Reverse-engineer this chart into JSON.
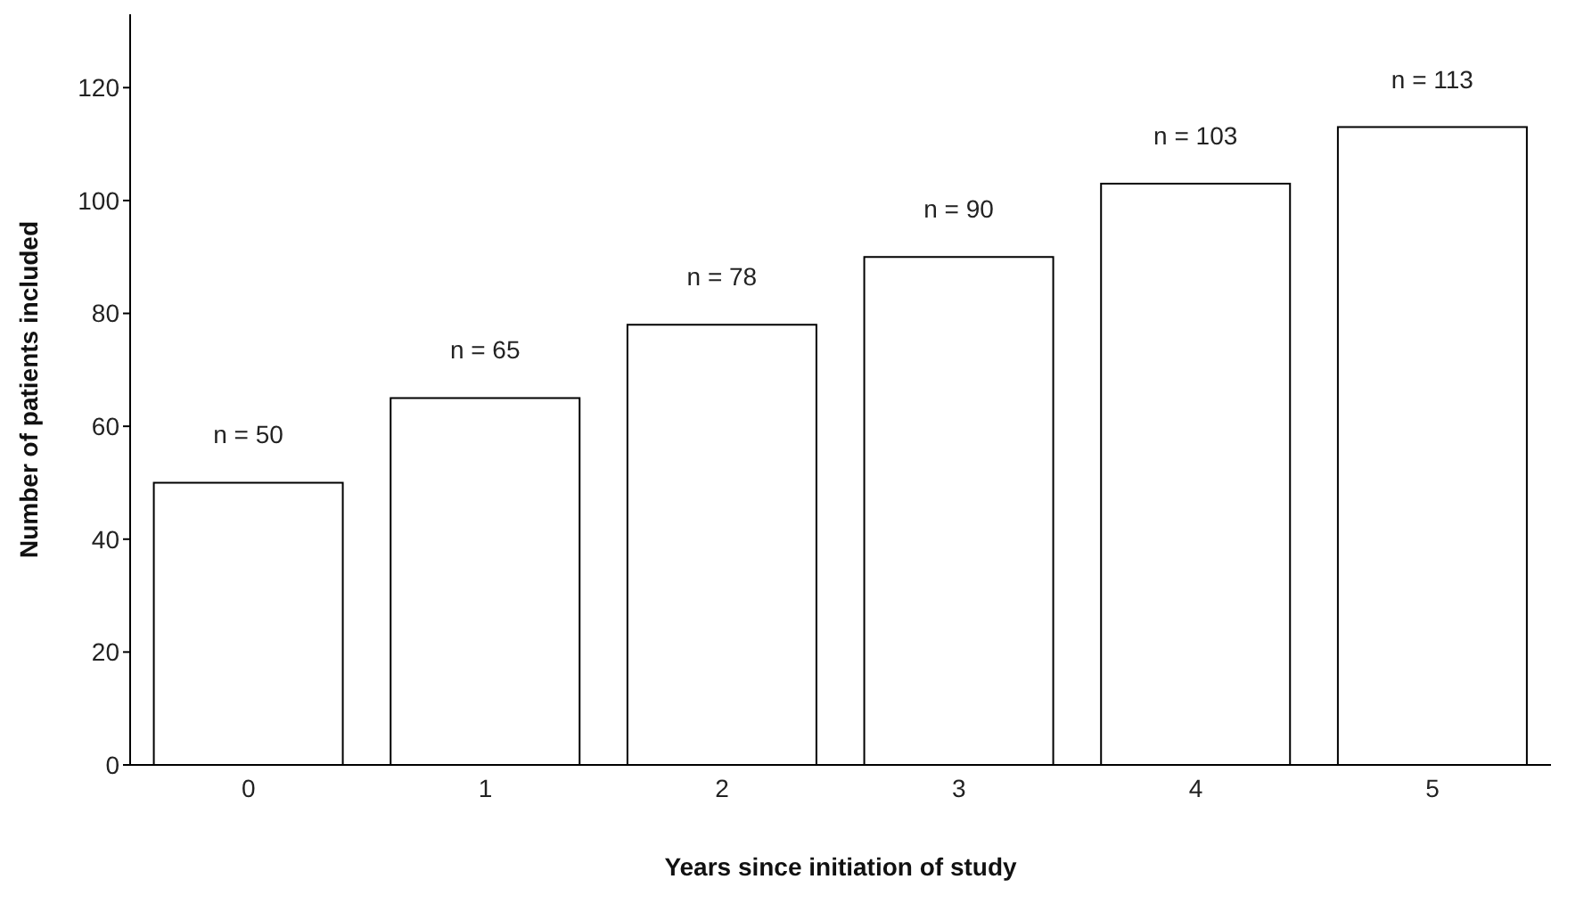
{
  "chart_data": {
    "type": "bar",
    "xlabel": "Years since initiation of study",
    "ylabel": "Number of patients included",
    "categories": [
      "0",
      "1",
      "2",
      "3",
      "4",
      "5"
    ],
    "values": [
      50,
      65,
      78,
      90,
      103,
      113
    ],
    "value_labels": [
      "n = 50",
      "n = 65",
      "n = 78",
      "n = 90",
      "n = 103",
      "n = 113"
    ],
    "color": "#ffffff",
    "ylim": [
      0,
      133
    ],
    "yticks": [
      0,
      20,
      40,
      60,
      80,
      100,
      120
    ],
    "grid": false,
    "legend": false
  }
}
